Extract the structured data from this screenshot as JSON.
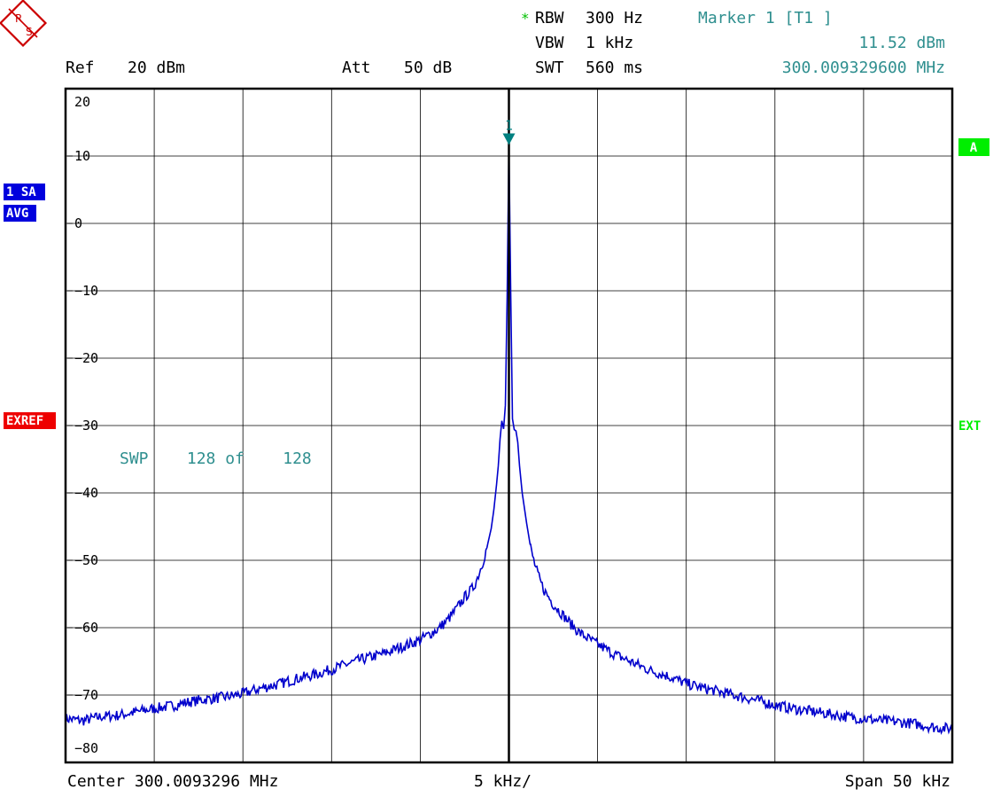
{
  "logo": {
    "text": "R&S"
  },
  "header": {
    "ref_label": "Ref",
    "ref_value": "20 dBm",
    "att_label": "Att",
    "att_value": "50 dB",
    "rbw_star": "*",
    "rbw_label": "RBW",
    "rbw_value": "300 Hz",
    "vbw_label": "VBW",
    "vbw_value": "1 kHz",
    "swt_label": "SWT",
    "swt_value": "560 ms",
    "marker_title": "Marker 1 [T1 ]",
    "marker_level": "11.52 dBm",
    "marker_freq": "300.009329600 MHz"
  },
  "side": {
    "trace_mode": "1 SA",
    "detector": "AVG",
    "exref": "EXREF",
    "trace_label": "A",
    "ext_label": "EXT"
  },
  "footer": {
    "center": "Center 300.0093296 MHz",
    "per_div": "5 kHz/",
    "span": "Span 50 kHz"
  },
  "sweep_text": "SWP    128 of    128",
  "marker_number": "1",
  "colors": {
    "trace": "#0000cc",
    "marker": "#008080",
    "info_teal": "#2f8f8f",
    "star_green": "#00c000",
    "badge_blue": "#0000dd",
    "badge_red": "#ee0000",
    "badge_green": "#00ee00"
  },
  "chart_data": {
    "type": "line",
    "title": "",
    "xlabel": "",
    "ylabel": "",
    "x_unit": "kHz offset from center",
    "xlim": [
      -25,
      25
    ],
    "ylim": [
      -80,
      20
    ],
    "yticks": [
      20,
      10,
      0,
      -10,
      -20,
      -30,
      -40,
      -50,
      -60,
      -70,
      -80
    ],
    "grid": true,
    "series": [
      {
        "x": [
          -25,
          -24,
          -23,
          -22,
          -21,
          -20,
          -19,
          -18,
          -17,
          -16,
          -15,
          -14,
          -13,
          -12,
          -11,
          -10,
          -9,
          -8,
          -7,
          -6,
          -5,
          -4.5,
          -4,
          -3.5,
          -3,
          -2.5,
          -2,
          -1.75,
          -1.5,
          -1.25,
          -1,
          -0.85,
          -0.7,
          -0.6,
          -0.5,
          -0.4,
          -0.3,
          -0.2,
          -0.1,
          0,
          0.1,
          0.2,
          0.3,
          0.4,
          0.5,
          0.6,
          0.75,
          1,
          1.25,
          1.5,
          1.75,
          2,
          2.5,
          3,
          3.5,
          4,
          5,
          6,
          7,
          8,
          9,
          10,
          11,
          12,
          13,
          14,
          15,
          16,
          17,
          18,
          19,
          20,
          21,
          22,
          23,
          24,
          25
        ],
        "y": [
          -73.5,
          -73.8,
          -73.2,
          -73.0,
          -72.5,
          -72.0,
          -71.6,
          -71.0,
          -70.6,
          -70.3,
          -69.8,
          -69.0,
          -68.4,
          -67.6,
          -67.0,
          -66.2,
          -65.3,
          -64.5,
          -63.8,
          -62.8,
          -61.8,
          -61.0,
          -60.2,
          -59.0,
          -57.4,
          -55.5,
          -54.0,
          -52.4,
          -50.5,
          -48.2,
          -45.3,
          -42.5,
          -38.8,
          -36.0,
          -32.0,
          -29.3,
          -30.5,
          -27.0,
          -11.0,
          11.52,
          -10.0,
          -29.0,
          -30.6,
          -30.8,
          -32.5,
          -36.0,
          -40.0,
          -44.5,
          -48.5,
          -51.0,
          -53.0,
          -54.5,
          -56.5,
          -58.0,
          -59.5,
          -60.8,
          -62.5,
          -64.0,
          -65.2,
          -66.4,
          -67.2,
          -68.3,
          -69.0,
          -69.6,
          -70.2,
          -70.8,
          -71.5,
          -72.0,
          -72.4,
          -72.8,
          -73.2,
          -73.5,
          -73.8,
          -74.0,
          -74.3,
          -74.8,
          -75.0
        ]
      }
    ],
    "marker": {
      "x": 0,
      "y": 11.52
    }
  }
}
